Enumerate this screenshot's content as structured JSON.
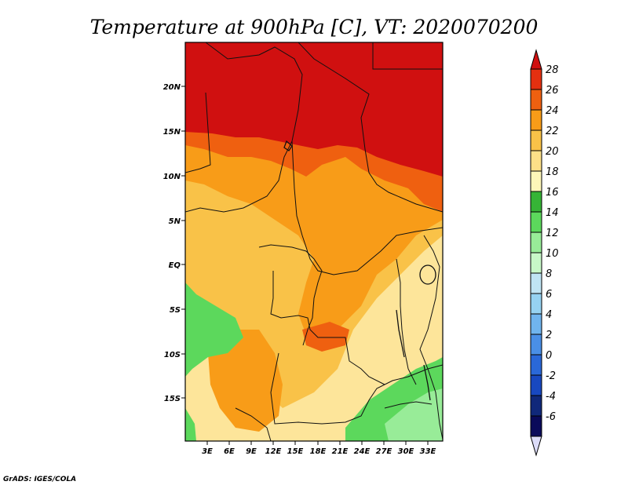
{
  "title": "Temperature at 900hPa [C], VT: 2020070200",
  "credit": "GrADS: IGES/COLA",
  "lat_labels": [
    "20N",
    "15N",
    "10N",
    "5N",
    "EQ",
    "5S",
    "10S",
    "15S"
  ],
  "lon_labels": [
    "3E",
    "6E",
    "9E",
    "12E",
    "15E",
    "18E",
    "21E",
    "24E",
    "27E",
    "30E",
    "33E"
  ],
  "colorbar": {
    "labels": [
      "28",
      "26",
      "24",
      "22",
      "20",
      "18",
      "16",
      "14",
      "12",
      "10",
      "8",
      "6",
      "4",
      "2",
      "0",
      "-2",
      "-4",
      "-6"
    ],
    "colors": [
      "#d01010",
      "#e43010",
      "#ef6010",
      "#f89c18",
      "#f9c248",
      "#fde088",
      "#fdf6b8",
      "#36b436",
      "#5cd85c",
      "#98ec98",
      "#c8f8c8",
      "#c0e4f4",
      "#96d2f2",
      "#70b4ee",
      "#4a8fe6",
      "#2a68d8",
      "#1848c0",
      "#10287a",
      "#0a0a5a",
      "#dcdcf8"
    ]
  },
  "map": {
    "lon_range": [
      0,
      35
    ],
    "lat_range": [
      -20,
      25
    ],
    "background_color": "#fde59a"
  }
}
